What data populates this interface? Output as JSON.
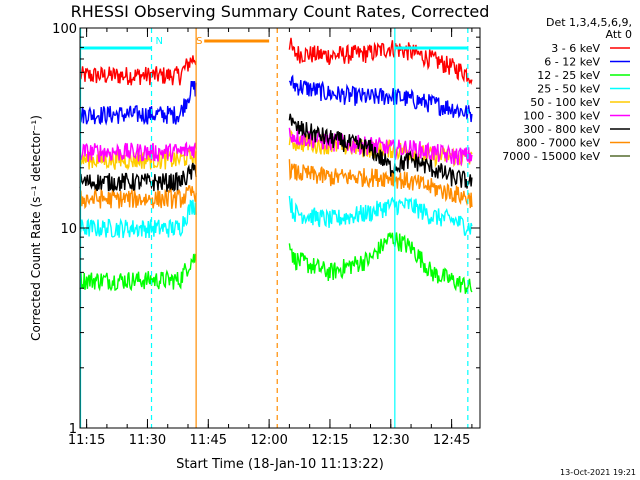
{
  "chart_data": {
    "type": "line",
    "title": "RHESSI Observing Summary Count Rates, Corrected",
    "xlabel": "Start Time (18-Jan-10 11:13:22)",
    "ylabel": "Corrected Count Rate (s⁻¹ detector⁻¹)",
    "y_scale": "log",
    "ylim": [
      1,
      100
    ],
    "xlim": [
      "11:13:22",
      "12:52:00"
    ],
    "x_ticks": [
      "11:15",
      "11:30",
      "11:45",
      "12:00",
      "12:15",
      "12:30",
      "12:45"
    ],
    "y_ticks": [
      "1",
      "10",
      "100"
    ],
    "legend_position": "right",
    "legend_header": [
      "Det 1,3,4,5,6,9,",
      "Att 0"
    ],
    "timestamp": "13-Oct-2021 19:21",
    "markers": [
      {
        "label": "N",
        "color": "#00ffff",
        "x": "11:31"
      },
      {
        "label": "S",
        "color": "#ff8c00",
        "x": "11:41"
      }
    ],
    "night_intervals": [
      [
        "11:13:22",
        "11:31"
      ],
      [
        "12:31",
        "12:49"
      ]
    ],
    "saa_interval": [
      "11:44",
      "12:00"
    ],
    "gaps": [
      [
        "11:42",
        "12:05"
      ]
    ],
    "vlines": [
      {
        "x": "11:13:30",
        "color": "#00ffff",
        "style": "solid"
      },
      {
        "x": "11:31",
        "color": "#00ffff",
        "style": "dashed"
      },
      {
        "x": "11:42",
        "color": "#ff8c00",
        "style": "solid"
      },
      {
        "x": "12:02",
        "color": "#ff8c00",
        "style": "dashed"
      },
      {
        "x": "12:31",
        "color": "#00ffff",
        "style": "solid"
      },
      {
        "x": "12:49",
        "color": "#00ffff",
        "style": "dashed"
      }
    ],
    "series": [
      {
        "name": "3 - 6 keV",
        "color": "#ff0000",
        "x": [
          "11:13",
          "11:20",
          "11:30",
          "11:38",
          "11:41",
          "12:05",
          "12:06",
          "12:15",
          "12:25",
          "12:30",
          "12:35",
          "12:40",
          "12:45",
          "12:50"
        ],
        "y": [
          58,
          58,
          58,
          58,
          70,
          85,
          75,
          73,
          75,
          80,
          76,
          70,
          64,
          58
        ]
      },
      {
        "name": "6 - 12 keV",
        "color": "#0000ff",
        "x": [
          "11:13",
          "11:20",
          "11:30",
          "11:38",
          "11:41",
          "12:05",
          "12:06",
          "12:15",
          "12:25",
          "12:30",
          "12:35",
          "12:40",
          "12:45",
          "12:50"
        ],
        "y": [
          37,
          37,
          37,
          37,
          50,
          55,
          52,
          47,
          45,
          46,
          44,
          42,
          40,
          37
        ]
      },
      {
        "name": "12 - 25 keV",
        "color": "#00ff00",
        "x": [
          "11:13",
          "11:20",
          "11:30",
          "11:38",
          "11:41",
          "12:05",
          "12:06",
          "12:15",
          "12:25",
          "12:30",
          "12:35",
          "12:40",
          "12:45",
          "12:50"
        ],
        "y": [
          5.5,
          5.5,
          5.5,
          5.5,
          7,
          9,
          7,
          6,
          7,
          9,
          8,
          6,
          5.5,
          5
        ]
      },
      {
        "name": "25 - 50 keV",
        "color": "#00ffff",
        "x": [
          "11:13",
          "11:20",
          "11:30",
          "11:38",
          "11:41",
          "12:05",
          "12:06",
          "12:15",
          "12:25",
          "12:30",
          "12:35",
          "12:40",
          "12:45",
          "12:50"
        ],
        "y": [
          10,
          10,
          10,
          10,
          13,
          14,
          12,
          11,
          12,
          13,
          13,
          11.5,
          11,
          10
        ]
      },
      {
        "name": "50 - 100 keV",
        "color": "#ffcc00",
        "x": [
          "11:13",
          "11:20",
          "11:30",
          "11:38",
          "11:41",
          "12:05",
          "12:06",
          "12:15",
          "12:25",
          "12:30",
          "12:35",
          "12:40",
          "12:45",
          "12:50"
        ],
        "y": [
          22,
          22,
          22,
          22,
          23,
          28,
          27,
          26,
          25,
          25,
          24,
          23,
          23,
          22
        ]
      },
      {
        "name": "100 - 300 keV",
        "color": "#ff00ff",
        "x": [
          "11:13",
          "11:20",
          "11:30",
          "11:38",
          "11:41",
          "12:05",
          "12:06",
          "12:15",
          "12:25",
          "12:30",
          "12:35",
          "12:40",
          "12:45",
          "12:50"
        ],
        "y": [
          24,
          24,
          24,
          24,
          25,
          30,
          29,
          27,
          26,
          25,
          25,
          24,
          23,
          23
        ]
      },
      {
        "name": "300 - 800 keV",
        "color": "#000000",
        "x": [
          "11:13",
          "11:20",
          "11:30",
          "11:38",
          "11:41",
          "12:05",
          "12:06",
          "12:15",
          "12:25",
          "12:30",
          "12:35",
          "12:40",
          "12:45",
          "12:50"
        ],
        "y": [
          17,
          17,
          17,
          17,
          19,
          38,
          32,
          28,
          25,
          20,
          22,
          20,
          18,
          17
        ]
      },
      {
        "name": "800 - 7000 keV",
        "color": "#ff8c00",
        "x": [
          "11:13",
          "11:20",
          "11:30",
          "11:38",
          "11:41",
          "12:05",
          "12:06",
          "12:15",
          "12:25",
          "12:30",
          "12:35",
          "12:40",
          "12:45",
          "12:50"
        ],
        "y": [
          14,
          14,
          14,
          14,
          15,
          20,
          19,
          18,
          18,
          18,
          17,
          16,
          15,
          14
        ]
      },
      {
        "name": "7000 - 15000 keV",
        "color": "#556b2f",
        "x": [],
        "y": []
      }
    ]
  }
}
